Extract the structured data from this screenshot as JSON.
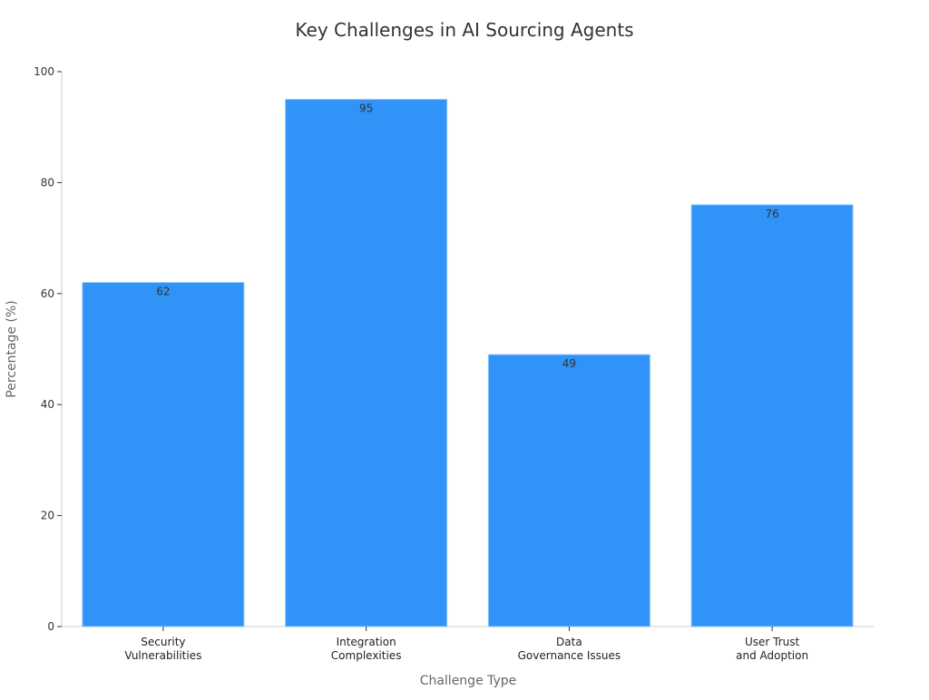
{
  "chart_data": {
    "type": "bar",
    "title": "Key Challenges in AI Sourcing Agents",
    "xlabel": "Challenge Type",
    "ylabel": "Percentage (%)",
    "categories": [
      [
        "Security",
        "Vulnerabilities"
      ],
      [
        "Integration",
        "Complexities"
      ],
      [
        "Data",
        "Governance Issues"
      ],
      [
        "User Trust",
        "and Adoption"
      ]
    ],
    "values": [
      62,
      95,
      49,
      76
    ],
    "ylim": [
      0,
      100
    ],
    "yticks": [
      0,
      20,
      40,
      60,
      80,
      100
    ],
    "grid": false,
    "bar_color": "#2f93f8",
    "bar_edge_color": "#8cc4ff"
  }
}
